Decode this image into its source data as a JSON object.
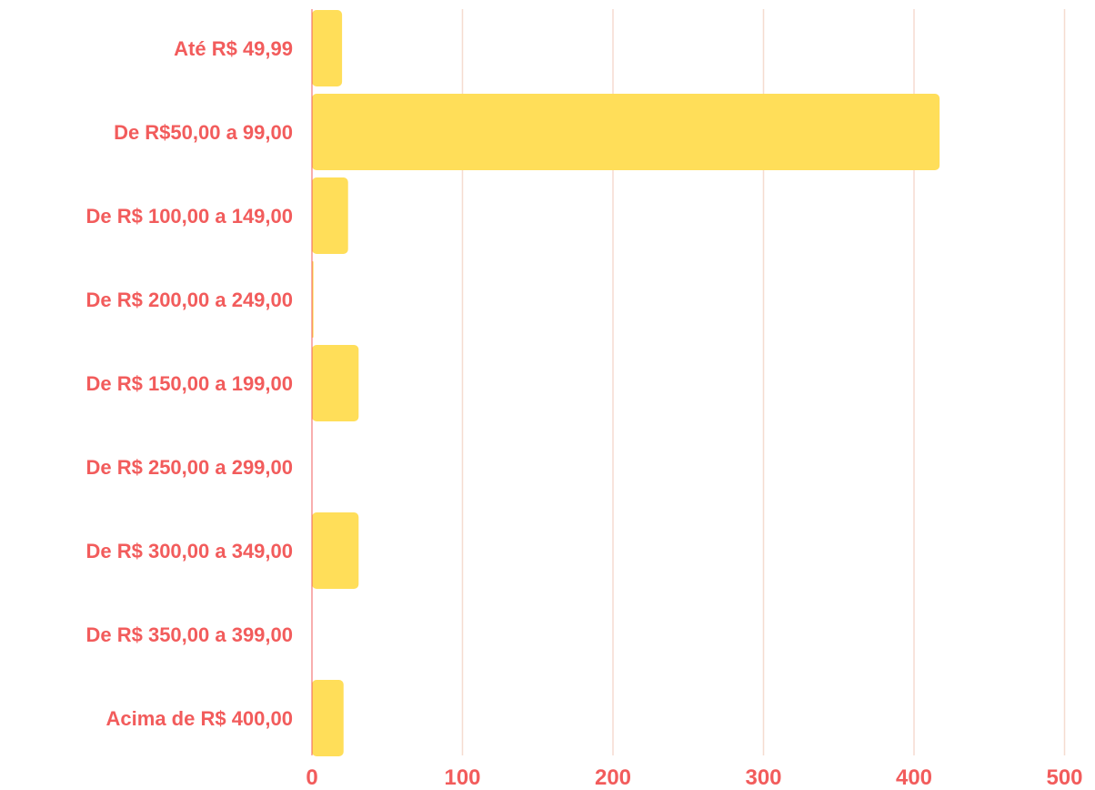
{
  "chart_data": {
    "type": "bar",
    "orientation": "horizontal",
    "categories": [
      "Até R$ 49,99",
      "De R$50,00 a 99,00",
      "De R$ 100,00 a 149,00",
      "De R$ 200,00 a 249,00",
      "De R$ 150,00 a 199,00",
      "De R$ 250,00 a 299,00",
      "De R$ 300,00 a 349,00",
      "De R$ 350,00 a 399,00",
      "Acima de R$ 400,00"
    ],
    "values": [
      20,
      417,
      24,
      1,
      31,
      0,
      31,
      0,
      21
    ],
    "xlim": [
      0,
      500
    ],
    "x_ticks": [
      "0",
      "100",
      "200",
      "300",
      "400",
      "500"
    ],
    "title": "",
    "xlabel": "",
    "ylabel": "",
    "grid": true,
    "legend": "none",
    "colors": {
      "bar": "#FFDE59",
      "label": "#F25C5C",
      "grid": "#F5DCD0",
      "baseline": "#F25C5C"
    }
  }
}
